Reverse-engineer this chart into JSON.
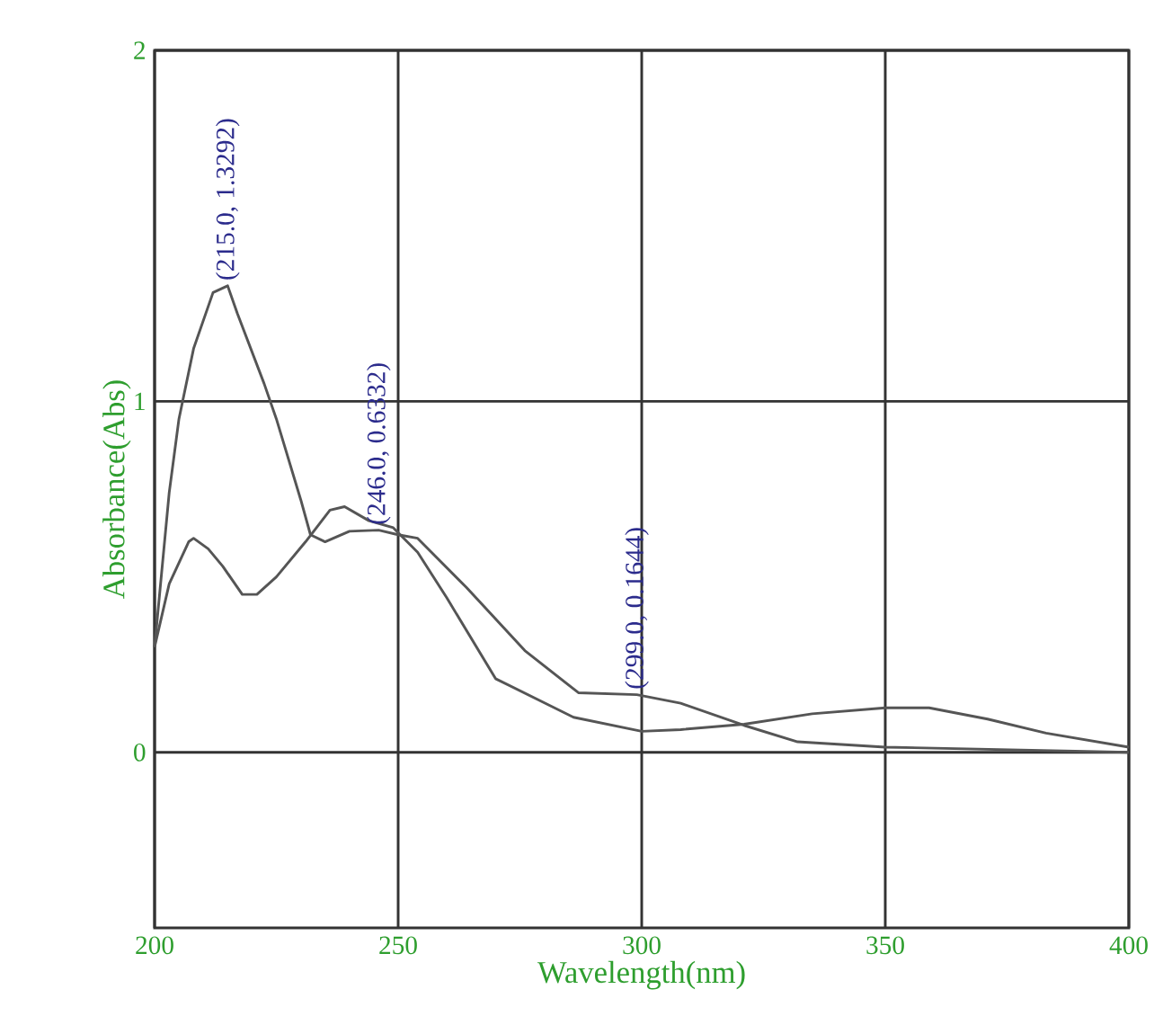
{
  "chart_data": {
    "type": "line",
    "xlabel": "Wavelength(nm)",
    "ylabel": "Absorbance(Abs)",
    "xlim": [
      200,
      400
    ],
    "xticks": [
      200,
      250,
      300,
      350,
      400
    ],
    "ylim": [
      -0.5,
      2
    ],
    "yticks": [
      0,
      1,
      2
    ],
    "grid": true,
    "series": [
      {
        "color": "#555555",
        "x": [
          200,
          203,
          205,
          208,
          212,
          215,
          217,
          222.5,
          225,
          230,
          232,
          235,
          240,
          246,
          250,
          254,
          264,
          276,
          287,
          299,
          308,
          321,
          332,
          350,
          400
        ],
        "values": [
          0.3,
          0.74,
          0.95,
          1.15,
          1.31,
          1.3292,
          1.25,
          1.05,
          0.95,
          0.72,
          0.62,
          0.6,
          0.63,
          0.6332,
          0.62,
          0.61,
          0.47,
          0.29,
          0.17,
          0.1644,
          0.14,
          0.077,
          0.03,
          0.015,
          0.0
        ]
      },
      {
        "color": "#555555",
        "x": [
          200,
          203,
          207,
          208,
          211,
          214,
          218,
          221,
          225,
          231,
          236,
          239,
          244,
          249,
          254,
          260,
          270,
          286,
          300,
          308,
          321,
          335,
          350,
          359,
          371,
          383,
          400
        ],
        "values": [
          0.3,
          0.48,
          0.6,
          0.61,
          0.58,
          0.53,
          0.45,
          0.45,
          0.5,
          0.6,
          0.69,
          0.7,
          0.66,
          0.64,
          0.57,
          0.44,
          0.21,
          0.1,
          0.06,
          0.065,
          0.08,
          0.11,
          0.127,
          0.127,
          0.095,
          0.055,
          0.015
        ]
      }
    ],
    "annotations": [
      {
        "text": "(215.0, 1.3292)",
        "x": 215,
        "y": 1.3292
      },
      {
        "text": "(246.0, 0.6332)",
        "x": 246,
        "y": 0.6332
      },
      {
        "text": "(299.0, 0.1644)",
        "x": 299,
        "y": 0.1644
      }
    ]
  }
}
